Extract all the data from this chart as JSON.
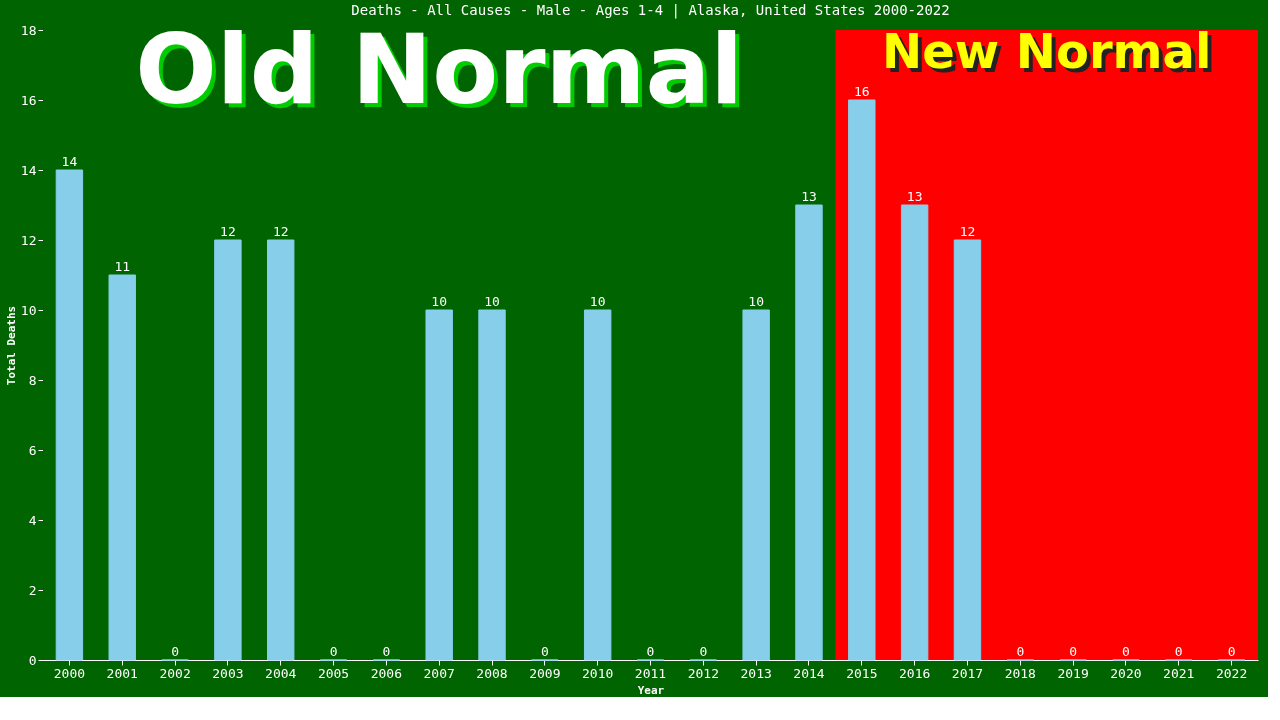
{
  "chart_data": {
    "type": "bar",
    "title": "Deaths - All Causes - Male - Ages 1-4 | Alaska, United States 2000-2022",
    "xlabel": "Year",
    "ylabel": "Total Deaths",
    "categories": [
      "2000",
      "2001",
      "2002",
      "2003",
      "2004",
      "2005",
      "2006",
      "2007",
      "2008",
      "2009",
      "2010",
      "2011",
      "2012",
      "2013",
      "2014",
      "2015",
      "2016",
      "2017",
      "2018",
      "2019",
      "2020",
      "2021",
      "2022"
    ],
    "values": [
      14,
      11,
      0,
      12,
      12,
      0,
      0,
      10,
      10,
      0,
      10,
      0,
      0,
      10,
      13,
      16,
      13,
      12,
      0,
      0,
      0,
      0,
      0
    ],
    "color": "#87ceeb",
    "ylim": [
      0,
      18
    ],
    "yticks": [
      0,
      2,
      4,
      6,
      8,
      10,
      12,
      14,
      16,
      18
    ],
    "grid": false,
    "data_labels": true,
    "bands": [
      {
        "axis": "x",
        "from": "2000",
        "to": "2014",
        "label": "Old Normal",
        "color": "#006400"
      },
      {
        "axis": "x",
        "from": "2015",
        "to": "2022",
        "label": "New Normal",
        "color": "#ff0000"
      }
    ]
  }
}
